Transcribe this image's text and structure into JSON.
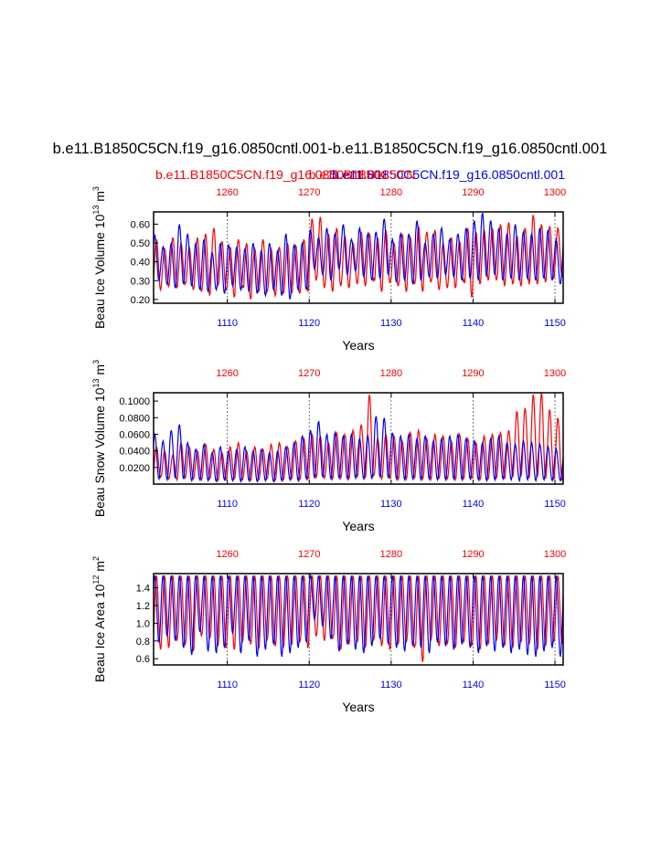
{
  "title": "b.e11.B1850C5CN.f19_g16.0850cntl.001-b.e11.B1850C5CN.f19_g16.0850cntl.001",
  "legend": {
    "red_label": "b.e11.B1850C5CN.f19_g16.0850cntl.001",
    "blue_label": "b.e11.B1850C5CN.f19_g16.0850cntl.001",
    "overlay_label": "b.e11.B1850C5CN"
  },
  "colors": {
    "red": "#ff0000",
    "blue": "#0000ff",
    "axis": "#000000",
    "grid": "#555555"
  },
  "chart_data": [
    {
      "type": "line",
      "name": "beau-ice-volume",
      "ylabel": "Beau Ice Volume 10",
      "ylabel_exp": "13",
      "ylabel_unit": "m",
      "ylabel_unit_exp": "3",
      "xlabel": "Years",
      "xlim_bottom": [
        1101,
        1151
      ],
      "xticks_bottom": [
        "1110",
        "1120",
        "1130",
        "1140",
        "1150"
      ],
      "xlim_top": [
        1251,
        1301
      ],
      "xticks_top": [
        "1260",
        "1270",
        "1280",
        "1290",
        "1300"
      ],
      "ylim": [
        0.18,
        0.665
      ],
      "yticks": [
        "0.20",
        "0.30",
        "0.40",
        "0.50",
        "0.60"
      ],
      "ytick_values": [
        0.2,
        0.3,
        0.4,
        0.5,
        0.6
      ],
      "series": [
        {
          "name": "red",
          "color": "#ff0000",
          "annual_max": [
            0.52,
            0.47,
            0.53,
            0.5,
            0.48,
            0.53,
            0.55,
            0.58,
            0.51,
            0.48,
            0.52,
            0.5,
            0.47,
            0.52,
            0.47,
            0.48,
            0.5,
            0.49,
            0.52,
            0.63,
            0.64,
            0.55,
            0.58,
            0.54,
            0.5,
            0.56,
            0.55,
            0.53,
            0.57,
            0.5,
            0.55,
            0.53,
            0.59,
            0.56,
            0.57,
            0.5,
            0.53,
            0.51,
            0.58,
            0.56,
            0.57,
            0.58,
            0.6,
            0.61,
            0.54,
            0.58,
            0.65,
            0.6,
            0.59,
            0.58,
            0.55
          ],
          "annual_min": [
            0.25,
            0.27,
            0.26,
            0.28,
            0.25,
            0.24,
            0.22,
            0.27,
            0.25,
            0.21,
            0.26,
            0.2,
            0.24,
            0.24,
            0.22,
            0.23,
            0.23,
            0.23,
            0.24,
            0.3,
            0.26,
            0.24,
            0.27,
            0.26,
            0.28,
            0.27,
            0.3,
            0.24,
            0.29,
            0.27,
            0.24,
            0.28,
            0.24,
            0.29,
            0.25,
            0.26,
            0.26,
            0.29,
            0.21,
            0.28,
            0.3,
            0.3,
            0.27,
            0.28,
            0.27,
            0.28,
            0.28,
            0.29,
            0.31,
            0.32,
            0.3
          ]
        },
        {
          "name": "blue",
          "color": "#0000ff",
          "annual_max": [
            0.54,
            0.48,
            0.5,
            0.6,
            0.55,
            0.5,
            0.52,
            0.45,
            0.5,
            0.49,
            0.48,
            0.47,
            0.5,
            0.46,
            0.5,
            0.46,
            0.55,
            0.49,
            0.5,
            0.57,
            0.53,
            0.58,
            0.55,
            0.6,
            0.52,
            0.58,
            0.55,
            0.56,
            0.63,
            0.52,
            0.55,
            0.55,
            0.62,
            0.5,
            0.55,
            0.58,
            0.52,
            0.55,
            0.58,
            0.62,
            0.66,
            0.62,
            0.58,
            0.55,
            0.6,
            0.56,
            0.55,
            0.58,
            0.57,
            0.52,
            0.56
          ],
          "annual_min": [
            0.3,
            0.28,
            0.26,
            0.28,
            0.27,
            0.25,
            0.24,
            0.25,
            0.23,
            0.27,
            0.25,
            0.24,
            0.23,
            0.22,
            0.25,
            0.22,
            0.2,
            0.25,
            0.25,
            0.36,
            0.33,
            0.3,
            0.36,
            0.33,
            0.35,
            0.32,
            0.3,
            0.31,
            0.33,
            0.29,
            0.3,
            0.28,
            0.3,
            0.32,
            0.31,
            0.33,
            0.32,
            0.3,
            0.31,
            0.3,
            0.32,
            0.33,
            0.3,
            0.31,
            0.3,
            0.31,
            0.3,
            0.31,
            0.3,
            0.28,
            0.21
          ]
        }
      ]
    },
    {
      "type": "line",
      "name": "beau-snow-volume",
      "ylabel": "Beau Snow Volume 10",
      "ylabel_exp": "13",
      "ylabel_unit": "m",
      "ylabel_unit_exp": "3",
      "xlabel": "Years",
      "xlim_bottom": [
        1101,
        1151
      ],
      "xticks_bottom": [
        "1110",
        "1120",
        "1130",
        "1140",
        "1150"
      ],
      "xlim_top": [
        1251,
        1301
      ],
      "xticks_top": [
        "1260",
        "1270",
        "1280",
        "1290",
        "1300"
      ],
      "ylim": [
        0.0,
        0.11
      ],
      "yticks": [
        "0.0200",
        "0.0400",
        "0.0600",
        "0.0800",
        "0.1000"
      ],
      "ytick_values": [
        0.02,
        0.04,
        0.06,
        0.08,
        0.1
      ],
      "series": [
        {
          "name": "red",
          "color": "#ff0000",
          "annual_max": [
            0.045,
            0.04,
            0.035,
            0.05,
            0.045,
            0.04,
            0.048,
            0.042,
            0.038,
            0.045,
            0.05,
            0.04,
            0.045,
            0.042,
            0.048,
            0.05,
            0.045,
            0.052,
            0.055,
            0.06,
            0.058,
            0.05,
            0.062,
            0.06,
            0.065,
            0.072,
            0.108,
            0.055,
            0.06,
            0.058,
            0.052,
            0.062,
            0.065,
            0.055,
            0.06,
            0.058,
            0.052,
            0.06,
            0.055,
            0.05,
            0.058,
            0.06,
            0.062,
            0.065,
            0.088,
            0.092,
            0.108,
            0.11,
            0.09,
            0.08,
            0.065
          ],
          "annual_min": [
            0.008,
            0.006,
            0.005,
            0.007,
            0.006,
            0.005,
            0.006,
            0.004,
            0.005,
            0.006,
            0.005,
            0.004,
            0.005,
            0.006,
            0.004,
            0.005,
            0.006,
            0.005,
            0.006,
            0.008,
            0.007,
            0.006,
            0.007,
            0.006,
            0.008,
            0.007,
            0.009,
            0.006,
            0.007,
            0.005,
            0.006,
            0.007,
            0.006,
            0.005,
            0.007,
            0.006,
            0.005,
            0.006,
            0.007,
            0.005,
            0.006,
            0.007,
            0.006,
            0.008,
            0.009,
            0.007,
            0.008,
            0.006,
            0.005,
            0.004,
            0.002
          ]
        },
        {
          "name": "blue",
          "color": "#0000ff",
          "annual_max": [
            0.06,
            0.052,
            0.065,
            0.072,
            0.05,
            0.042,
            0.048,
            0.038,
            0.045,
            0.04,
            0.042,
            0.045,
            0.04,
            0.042,
            0.038,
            0.04,
            0.045,
            0.05,
            0.058,
            0.065,
            0.076,
            0.06,
            0.062,
            0.058,
            0.06,
            0.055,
            0.058,
            0.082,
            0.08,
            0.062,
            0.058,
            0.06,
            0.055,
            0.058,
            0.052,
            0.055,
            0.058,
            0.06,
            0.055,
            0.052,
            0.05,
            0.055,
            0.058,
            0.05,
            0.048,
            0.052,
            0.05,
            0.048,
            0.045,
            0.042,
            0.04
          ],
          "annual_min": [
            0.006,
            0.005,
            0.007,
            0.006,
            0.004,
            0.005,
            0.004,
            0.003,
            0.005,
            0.004,
            0.003,
            0.004,
            0.003,
            0.004,
            0.003,
            0.004,
            0.005,
            0.004,
            0.006,
            0.007,
            0.008,
            0.006,
            0.007,
            0.006,
            0.007,
            0.006,
            0.006,
            0.008,
            0.007,
            0.006,
            0.005,
            0.006,
            0.005,
            0.006,
            0.005,
            0.005,
            0.006,
            0.005,
            0.006,
            0.005,
            0.004,
            0.005,
            0.006,
            0.005,
            0.004,
            0.005,
            0.004,
            0.005,
            0.004,
            0.004,
            0.003
          ]
        }
      ]
    },
    {
      "type": "line",
      "name": "beau-ice-area",
      "ylabel": "Beau Ice Area 10",
      "ylabel_exp": "12",
      "ylabel_unit": "m",
      "ylabel_unit_exp": "2",
      "xlabel": "Years",
      "xlim_bottom": [
        1101,
        1151
      ],
      "xticks_bottom": [
        "1110",
        "1120",
        "1130",
        "1140",
        "1150"
      ],
      "xlim_top": [
        1251,
        1301
      ],
      "xticks_top": [
        "1260",
        "1270",
        "1280",
        "1290",
        "1300"
      ],
      "ylim": [
        0.53,
        1.56
      ],
      "yticks": [
        "0.6",
        "0.8",
        "1.0",
        "1.2",
        "1.4"
      ],
      "ytick_values": [
        0.6,
        0.8,
        1.0,
        1.2,
        1.4
      ],
      "series": [
        {
          "name": "red",
          "color": "#ff0000",
          "annual_max": [
            1.54,
            1.54,
            1.54,
            1.54,
            1.54,
            1.54,
            1.54,
            1.54,
            1.54,
            1.54,
            1.54,
            1.54,
            1.54,
            1.54,
            1.54,
            1.54,
            1.54,
            1.54,
            1.54,
            1.54,
            1.54,
            1.54,
            1.54,
            1.54,
            1.54,
            1.54,
            1.54,
            1.54,
            1.54,
            1.54,
            1.54,
            1.54,
            1.54,
            1.54,
            1.54,
            1.54,
            1.54,
            1.54,
            1.54,
            1.54,
            1.54,
            1.54,
            1.54,
            1.54,
            1.54,
            1.54,
            1.54,
            1.54,
            1.54,
            1.54,
            1.54
          ],
          "annual_min": [
            0.7,
            0.72,
            0.8,
            0.75,
            0.68,
            0.85,
            0.82,
            0.74,
            0.72,
            0.7,
            0.78,
            0.76,
            0.71,
            0.8,
            0.74,
            0.72,
            0.75,
            0.78,
            0.72,
            0.85,
            0.8,
            0.82,
            0.7,
            0.76,
            0.78,
            0.72,
            0.8,
            0.74,
            0.7,
            0.76,
            0.78,
            0.72,
            0.56,
            0.8,
            0.74,
            0.76,
            0.72,
            0.78,
            0.74,
            0.7,
            0.76,
            0.8,
            0.74,
            0.72,
            0.78,
            0.76,
            0.7,
            0.74,
            0.78,
            0.76,
            0.72
          ]
        },
        {
          "name": "blue",
          "color": "#0000ff",
          "annual_max": [
            1.54,
            1.54,
            1.54,
            1.54,
            1.54,
            1.54,
            1.54,
            1.54,
            1.54,
            1.54,
            1.54,
            1.54,
            1.54,
            1.54,
            1.54,
            1.54,
            1.54,
            1.54,
            1.54,
            1.54,
            1.54,
            1.54,
            1.54,
            1.54,
            1.54,
            1.54,
            1.54,
            1.54,
            1.54,
            1.54,
            1.54,
            1.54,
            1.54,
            1.54,
            1.54,
            1.54,
            1.54,
            1.54,
            1.54,
            1.54,
            1.54,
            1.54,
            1.54,
            1.54,
            1.54,
            1.54,
            1.54,
            1.54,
            1.54,
            1.54,
            1.54
          ],
          "annual_min": [
            0.78,
            0.85,
            0.8,
            0.72,
            0.64,
            0.9,
            0.68,
            0.66,
            0.72,
            0.88,
            0.66,
            0.8,
            0.62,
            0.7,
            0.76,
            0.62,
            0.66,
            0.72,
            0.78,
            1.04,
            0.96,
            0.82,
            0.68,
            0.76,
            0.7,
            0.66,
            0.74,
            0.82,
            0.76,
            0.72,
            0.68,
            0.74,
            0.72,
            0.66,
            0.78,
            0.74,
            0.7,
            0.76,
            0.72,
            0.66,
            0.74,
            0.68,
            0.72,
            0.66,
            0.7,
            0.64,
            0.62,
            0.68,
            0.72,
            0.62,
            0.56
          ]
        }
      ]
    }
  ]
}
